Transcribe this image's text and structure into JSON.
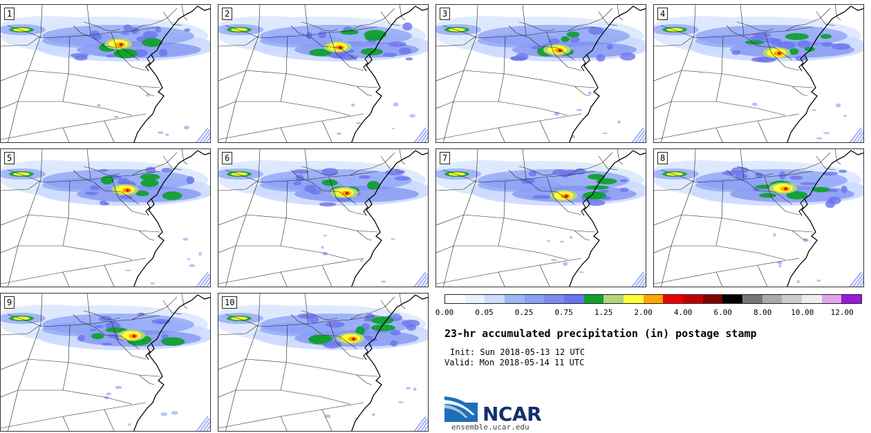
{
  "panels": [
    {
      "label": "1"
    },
    {
      "label": "2"
    },
    {
      "label": "3"
    },
    {
      "label": "4"
    },
    {
      "label": "5"
    },
    {
      "label": "6"
    },
    {
      "label": "7"
    },
    {
      "label": "8"
    },
    {
      "label": "9"
    },
    {
      "label": "10"
    }
  ],
  "colorbar": {
    "colors": [
      "#ffffff",
      "#e8f2ff",
      "#cddcff",
      "#9db7f5",
      "#8aa0f5",
      "#7b8cf0",
      "#6a74ec",
      "#10a030",
      "#b4d47a",
      "#ffff33",
      "#ffa500",
      "#e80000",
      "#c00000",
      "#800000",
      "#000000",
      "#777777",
      "#aaaaaa",
      "#cccccc",
      "#eeeeee",
      "#dda6f0",
      "#9a1ad8"
    ],
    "ticks": [
      "0.00",
      "0.05",
      "0.25",
      "0.75",
      "1.25",
      "2.00",
      "4.00",
      "6.00",
      "8.00",
      "10.00",
      "12.00"
    ]
  },
  "title": "23-hr accumulated precipitation (in) postage stamp",
  "init": "Init: Sun 2018-05-13 12 UTC",
  "valid": "Valid: Mon 2018-05-14 11 UTC",
  "logo": {
    "name": "NCAR",
    "url": "ensemble.ucar.edu"
  }
}
